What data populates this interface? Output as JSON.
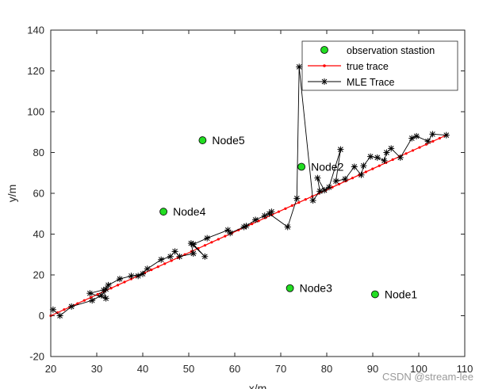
{
  "chart_data": {
    "type": "line",
    "title": "",
    "xlabel": "x/m",
    "ylabel": "y/m",
    "xlim": [
      20,
      110
    ],
    "ylim": [
      -20,
      140
    ],
    "xticks": [
      20,
      30,
      40,
      50,
      60,
      70,
      80,
      90,
      100,
      110
    ],
    "yticks": [
      -20,
      0,
      20,
      40,
      60,
      80,
      100,
      120,
      140
    ],
    "legend_position": "top-right",
    "stations": {
      "name": "observation stastion",
      "color": "#22dd22",
      "points": [
        {
          "label": "Node1",
          "x": 90.5,
          "y": 10.5
        },
        {
          "label": "Node2",
          "x": 74.5,
          "y": 73
        },
        {
          "label": "Node3",
          "x": 72,
          "y": 13.5
        },
        {
          "label": "Node4",
          "x": 44.5,
          "y": 51
        },
        {
          "label": "Node5",
          "x": 53,
          "y": 86
        }
      ]
    },
    "true_trace": {
      "name": "true trace",
      "color": "#ff0000",
      "start": [
        20,
        0
      ],
      "end": [
        106,
        88.5
      ],
      "n_points": 60
    },
    "mle_trace": {
      "name": "MLE Trace",
      "color": "#000000",
      "x": [
        20.5,
        22,
        24.5,
        29,
        31,
        32,
        28.5,
        32,
        31.5,
        32.5,
        35,
        37.5,
        40,
        39,
        41,
        44,
        46,
        47,
        48,
        51,
        50.5,
        53.5,
        51,
        54,
        58.5,
        59,
        62,
        62.5,
        64.5,
        66.5,
        68,
        67.5,
        71.5,
        73.5,
        74,
        77,
        78.5,
        78,
        79.5,
        80.5,
        83,
        82,
        84,
        86,
        87.5,
        88,
        89.5,
        91,
        92.5,
        93,
        94,
        96,
        98.5,
        99.5,
        102,
        103,
        106
      ],
      "y": [
        3,
        0,
        4.5,
        7.5,
        10,
        13,
        11,
        8.5,
        12.5,
        15,
        18,
        19.5,
        20.5,
        19.5,
        23,
        27.5,
        29,
        31.5,
        29,
        30.5,
        35.5,
        29,
        35,
        38,
        42,
        40.5,
        43.5,
        44,
        47,
        49,
        51,
        50,
        43.5,
        57.5,
        122,
        56.5,
        61,
        67.5,
        61.5,
        63,
        81.5,
        66,
        67,
        73,
        69,
        73.5,
        78,
        77.5,
        76,
        80,
        82,
        77.5,
        87,
        88,
        85.5,
        89,
        88.5
      ]
    }
  },
  "watermark": "CSDN @stream-lee"
}
